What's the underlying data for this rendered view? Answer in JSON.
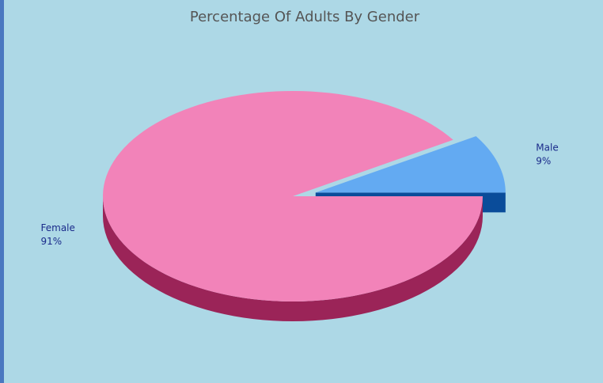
{
  "chart_data": {
    "type": "pie",
    "title": "Percentage Of Adults By Gender",
    "categories": [
      "Female",
      "Male"
    ],
    "values": [
      91,
      9
    ],
    "value_labels": [
      "91%",
      "9%"
    ],
    "colors": [
      "#f283b9",
      "#63aaf2"
    ],
    "side_colors": [
      "#9b2458",
      "#0a4c9a"
    ],
    "exploded": [
      false,
      true
    ]
  }
}
